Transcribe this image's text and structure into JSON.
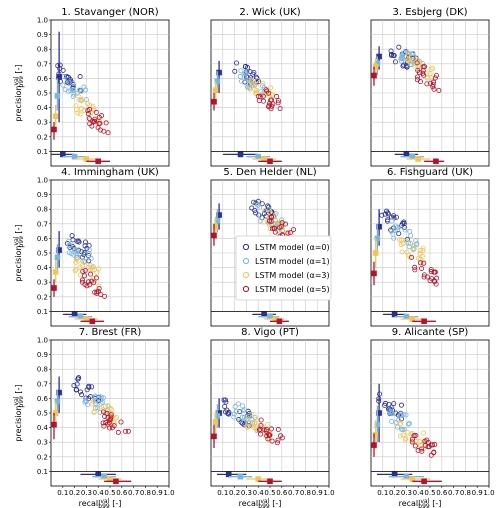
{
  "figure": {
    "colors": {
      "alpha0": "#2b2f8f",
      "alpha1": "#78b6dc",
      "alpha3": "#f2c45a",
      "alpha5": "#b5122c",
      "grid": "#c8c8c8"
    }
  },
  "chart_data": [
    {
      "type": "scatter",
      "title": "1. Stavanger (NOR)",
      "ylabel": "precision_{p99}^{val} [-]",
      "ylim": [
        0.1,
        1.0
      ],
      "xlim": [
        0,
        1.0
      ],
      "clouds": [
        {
          "model": "α=0",
          "cx": 0.15,
          "cy": 0.6
        },
        {
          "model": "α=1",
          "cx": 0.2,
          "cy": 0.52
        },
        {
          "model": "α=3",
          "cx": 0.32,
          "cy": 0.38
        },
        {
          "model": "α=5",
          "cx": 0.42,
          "cy": 0.3
        }
      ],
      "y_bars": [
        {
          "y": 0.61,
          "lo": 0.3,
          "hi": 0.92
        },
        {
          "y": 0.48,
          "lo": 0.38,
          "hi": 0.6
        },
        {
          "y": 0.34,
          "lo": 0.28,
          "hi": 0.42
        },
        {
          "y": 0.25,
          "lo": 0.18,
          "hi": 0.3
        }
      ],
      "x_bars": [
        {
          "x": 0.1,
          "lo": 0.0,
          "hi": 0.2
        },
        {
          "x": 0.2,
          "lo": 0.1,
          "hi": 0.3
        },
        {
          "x": 0.3,
          "lo": 0.2,
          "hi": 0.4
        },
        {
          "x": 0.4,
          "lo": 0.3,
          "hi": 0.5
        }
      ]
    },
    {
      "type": "scatter",
      "title": "2. Wick (UK)",
      "ylim": [
        0.1,
        1.0
      ],
      "xlim": [
        0,
        1.0
      ],
      "clouds": [
        {
          "model": "α=0",
          "cx": 0.3,
          "cy": 0.62
        },
        {
          "model": "α=1",
          "cx": 0.35,
          "cy": 0.58
        },
        {
          "model": "α=3",
          "cx": 0.42,
          "cy": 0.52
        },
        {
          "model": "α=5",
          "cx": 0.5,
          "cy": 0.45
        }
      ],
      "y_bars": [
        {
          "y": 0.64,
          "lo": 0.5,
          "hi": 0.72
        },
        {
          "y": 0.58,
          "lo": 0.5,
          "hi": 0.65
        },
        {
          "y": 0.52,
          "lo": 0.45,
          "hi": 0.58
        },
        {
          "y": 0.44,
          "lo": 0.38,
          "hi": 0.5
        }
      ],
      "x_bars": [
        {
          "x": 0.25,
          "lo": 0.1,
          "hi": 0.4
        },
        {
          "x": 0.4,
          "lo": 0.3,
          "hi": 0.5
        },
        {
          "x": 0.45,
          "lo": 0.35,
          "hi": 0.55
        },
        {
          "x": 0.5,
          "lo": 0.4,
          "hi": 0.6
        }
      ]
    },
    {
      "type": "scatter",
      "title": "3. Esbjerg (DK)",
      "ylim": [
        0.1,
        1.0
      ],
      "xlim": [
        0,
        1.0
      ],
      "clouds": [
        {
          "model": "α=0",
          "cx": 0.28,
          "cy": 0.74
        },
        {
          "model": "α=1",
          "cx": 0.35,
          "cy": 0.72
        },
        {
          "model": "α=3",
          "cx": 0.42,
          "cy": 0.68
        },
        {
          "model": "α=5",
          "cx": 0.5,
          "cy": 0.6
        }
      ],
      "y_bars": [
        {
          "y": 0.75,
          "lo": 0.66,
          "hi": 0.82
        },
        {
          "y": 0.7,
          "lo": 0.62,
          "hi": 0.75
        },
        {
          "y": 0.68,
          "lo": 0.6,
          "hi": 0.74
        },
        {
          "y": 0.62,
          "lo": 0.55,
          "hi": 0.68
        }
      ],
      "x_bars": [
        {
          "x": 0.3,
          "lo": 0.2,
          "hi": 0.4
        },
        {
          "x": 0.35,
          "lo": 0.25,
          "hi": 0.45
        },
        {
          "x": 0.4,
          "lo": 0.3,
          "hi": 0.5
        },
        {
          "x": 0.55,
          "lo": 0.45,
          "hi": 0.62
        }
      ]
    },
    {
      "type": "scatter",
      "title": "4. Immingham (UK)",
      "ylim": [
        0.1,
        1.0
      ],
      "xlim": [
        0,
        1.0
      ],
      "clouds": [
        {
          "model": "α=0",
          "cx": 0.22,
          "cy": 0.55
        },
        {
          "model": "α=1",
          "cx": 0.25,
          "cy": 0.5
        },
        {
          "model": "α=3",
          "cx": 0.3,
          "cy": 0.38
        },
        {
          "model": "α=5",
          "cx": 0.35,
          "cy": 0.3
        }
      ],
      "y_bars": [
        {
          "y": 0.52,
          "lo": 0.4,
          "hi": 0.65
        },
        {
          "y": 0.47,
          "lo": 0.38,
          "hi": 0.56
        },
        {
          "y": 0.37,
          "lo": 0.3,
          "hi": 0.45
        },
        {
          "y": 0.26,
          "lo": 0.2,
          "hi": 0.32
        }
      ],
      "x_bars": [
        {
          "x": 0.2,
          "lo": 0.1,
          "hi": 0.3
        },
        {
          "x": 0.25,
          "lo": 0.15,
          "hi": 0.35
        },
        {
          "x": 0.3,
          "lo": 0.2,
          "hi": 0.4
        },
        {
          "x": 0.35,
          "lo": 0.25,
          "hi": 0.45
        }
      ]
    },
    {
      "type": "scatter",
      "title": "5. Den Helder (NL)",
      "ylim": [
        0.1,
        1.0
      ],
      "xlim": [
        0,
        1.0
      ],
      "clouds": [
        {
          "model": "α=0",
          "cx": 0.45,
          "cy": 0.78
        },
        {
          "model": "α=1",
          "cx": 0.5,
          "cy": 0.74
        },
        {
          "model": "α=3",
          "cx": 0.55,
          "cy": 0.7
        },
        {
          "model": "α=5",
          "cx": 0.6,
          "cy": 0.66
        }
      ],
      "y_bars": [
        {
          "y": 0.76,
          "lo": 0.66,
          "hi": 0.84
        },
        {
          "y": 0.72,
          "lo": 0.64,
          "hi": 0.8
        },
        {
          "y": 0.68,
          "lo": 0.6,
          "hi": 0.75
        },
        {
          "y": 0.62,
          "lo": 0.55,
          "hi": 0.7
        }
      ],
      "x_bars": [
        {
          "x": 0.45,
          "lo": 0.35,
          "hi": 0.55
        },
        {
          "x": 0.5,
          "lo": 0.4,
          "hi": 0.58
        },
        {
          "x": 0.55,
          "lo": 0.45,
          "hi": 0.62
        },
        {
          "x": 0.58,
          "lo": 0.5,
          "hi": 0.66
        }
      ]
    },
    {
      "type": "scatter",
      "title": "6. Fishguard (UK)",
      "ylim": [
        0.1,
        1.0
      ],
      "xlim": [
        0,
        1.0
      ],
      "clouds": [
        {
          "model": "α=0",
          "cx": 0.2,
          "cy": 0.7
        },
        {
          "model": "α=1",
          "cx": 0.28,
          "cy": 0.62
        },
        {
          "model": "α=3",
          "cx": 0.35,
          "cy": 0.52
        },
        {
          "model": "α=5",
          "cx": 0.45,
          "cy": 0.38
        }
      ],
      "y_bars": [
        {
          "y": 0.68,
          "lo": 0.55,
          "hi": 0.8
        },
        {
          "y": 0.6,
          "lo": 0.5,
          "hi": 0.7
        },
        {
          "y": 0.5,
          "lo": 0.4,
          "hi": 0.6
        },
        {
          "y": 0.36,
          "lo": 0.28,
          "hi": 0.44
        }
      ],
      "x_bars": [
        {
          "x": 0.2,
          "lo": 0.1,
          "hi": 0.3
        },
        {
          "x": 0.3,
          "lo": 0.2,
          "hi": 0.4
        },
        {
          "x": 0.35,
          "lo": 0.25,
          "hi": 0.45
        },
        {
          "x": 0.45,
          "lo": 0.35,
          "hi": 0.55
        }
      ]
    },
    {
      "type": "scatter",
      "title": "7. Brest (FR)",
      "ylim": [
        0.1,
        1.0
      ],
      "xlim": [
        0,
        1.0
      ],
      "clouds": [
        {
          "model": "α=0",
          "cx": 0.3,
          "cy": 0.66
        },
        {
          "model": "α=1",
          "cx": 0.38,
          "cy": 0.58
        },
        {
          "model": "α=3",
          "cx": 0.45,
          "cy": 0.5
        },
        {
          "model": "α=5",
          "cx": 0.55,
          "cy": 0.42
        }
      ],
      "y_bars": [
        {
          "y": 0.64,
          "lo": 0.5,
          "hi": 0.75
        },
        {
          "y": 0.58,
          "lo": 0.48,
          "hi": 0.66
        },
        {
          "y": 0.5,
          "lo": 0.42,
          "hi": 0.58
        },
        {
          "y": 0.42,
          "lo": 0.32,
          "hi": 0.5
        }
      ],
      "x_bars": [
        {
          "x": 0.4,
          "lo": 0.25,
          "hi": 0.55
        },
        {
          "x": 0.45,
          "lo": 0.35,
          "hi": 0.55
        },
        {
          "x": 0.5,
          "lo": 0.4,
          "hi": 0.6
        },
        {
          "x": 0.55,
          "lo": 0.45,
          "hi": 0.68
        }
      ]
    },
    {
      "type": "scatter",
      "title": "8. Vigo (PT)",
      "ylim": [
        0.1,
        1.0
      ],
      "xlim": [
        0,
        1.0
      ],
      "clouds": [
        {
          "model": "α=0",
          "cx": 0.22,
          "cy": 0.5
        },
        {
          "model": "α=1",
          "cx": 0.3,
          "cy": 0.48
        },
        {
          "model": "α=3",
          "cx": 0.4,
          "cy": 0.42
        },
        {
          "model": "α=5",
          "cx": 0.5,
          "cy": 0.36
        }
      ],
      "y_bars": [
        {
          "y": 0.5,
          "lo": 0.4,
          "hi": 0.6
        },
        {
          "y": 0.48,
          "lo": 0.4,
          "hi": 0.56
        },
        {
          "y": 0.44,
          "lo": 0.36,
          "hi": 0.52
        },
        {
          "y": 0.34,
          "lo": 0.26,
          "hi": 0.42
        }
      ],
      "x_bars": [
        {
          "x": 0.15,
          "lo": 0.05,
          "hi": 0.3
        },
        {
          "x": 0.25,
          "lo": 0.15,
          "hi": 0.35
        },
        {
          "x": 0.4,
          "lo": 0.3,
          "hi": 0.5
        },
        {
          "x": 0.5,
          "lo": 0.4,
          "hi": 0.6
        }
      ]
    },
    {
      "type": "scatter",
      "title": "9. Alicante (SP)",
      "ylim": [
        0.1,
        1.0
      ],
      "xlim": [
        0,
        1.0
      ],
      "clouds": [
        {
          "model": "α=0",
          "cx": 0.15,
          "cy": 0.55
        },
        {
          "model": "α=1",
          "cx": 0.25,
          "cy": 0.45
        },
        {
          "model": "α=3",
          "cx": 0.35,
          "cy": 0.35
        },
        {
          "model": "α=5",
          "cx": 0.45,
          "cy": 0.28
        }
      ],
      "y_bars": [
        {
          "y": 0.5,
          "lo": 0.3,
          "hi": 0.7
        },
        {
          "y": 0.42,
          "lo": 0.3,
          "hi": 0.55
        },
        {
          "y": 0.35,
          "lo": 0.25,
          "hi": 0.45
        },
        {
          "y": 0.28,
          "lo": 0.2,
          "hi": 0.36
        }
      ],
      "x_bars": [
        {
          "x": 0.2,
          "lo": 0.05,
          "hi": 0.35
        },
        {
          "x": 0.3,
          "lo": 0.15,
          "hi": 0.45
        },
        {
          "x": 0.35,
          "lo": 0.25,
          "hi": 0.5
        },
        {
          "x": 0.45,
          "lo": 0.35,
          "hi": 0.6
        }
      ]
    }
  ],
  "legend": {
    "items": [
      {
        "label": "LSTM model (α=0)",
        "color": "#2b2f8f"
      },
      {
        "label": "LSTM model (α=1)",
        "color": "#78b6dc"
      },
      {
        "label": "LSTM model (α=3)",
        "color": "#f2c45a"
      },
      {
        "label": "LSTM model (α=5)",
        "color": "#b5122c"
      }
    ]
  },
  "axes": {
    "yticks": [
      "0.1",
      "0.2",
      "0.3",
      "0.4",
      "0.5",
      "0.6",
      "0.7",
      "0.8",
      "0.9",
      "1.0"
    ],
    "xticks": [
      "0.1",
      "0.2",
      "0.3",
      "0.4",
      "0.5",
      "0.6",
      "0.7",
      "0.8",
      "0.9",
      "1.0"
    ],
    "ylabel_main": "precision",
    "ylabel_sup": "val",
    "ylabel_sub": "p99",
    "ylabel_unit": " [-]",
    "xlabel_main": "recall",
    "xlabel_sup": "val",
    "xlabel_sub": "p99",
    "xlabel_unit": " [-]"
  }
}
